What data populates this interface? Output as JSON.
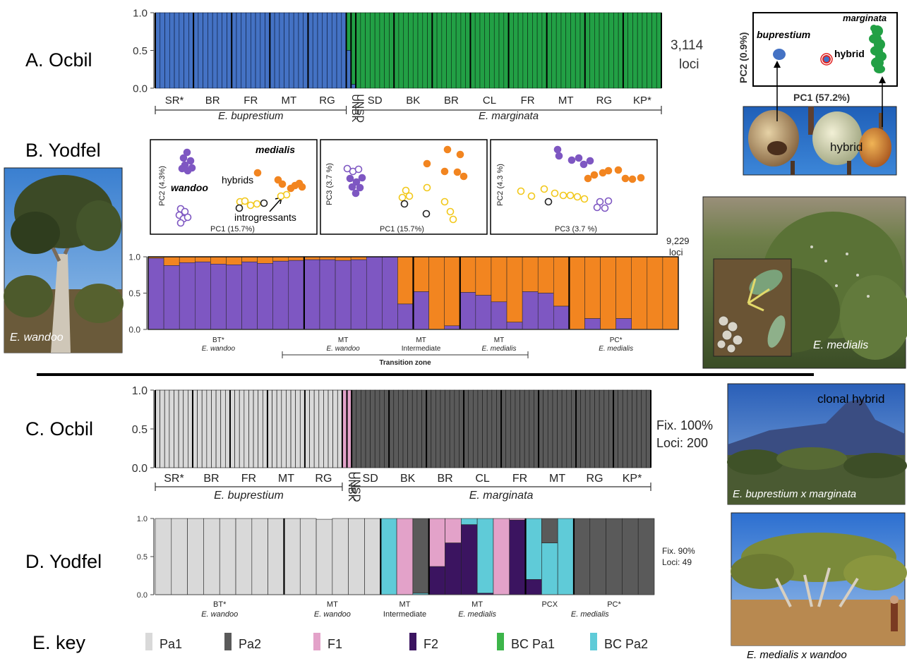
{
  "panels": {
    "A": {
      "label": "A. Ocbil",
      "loci": [
        "3,114",
        "loci"
      ]
    },
    "B": {
      "label": "B. Yodfel",
      "loci": [
        "9,229",
        "loci"
      ]
    },
    "C": {
      "label": "C. Ocbil",
      "loci": [
        "Fix. 100%",
        "Loci: 200"
      ]
    },
    "D": {
      "label": "D. Yodfel",
      "loci": [
        "Fix. 90%",
        "Loci: 49"
      ]
    },
    "E": {
      "label": "E. key"
    }
  },
  "colors": {
    "buprestium_blue": "#4472C4",
    "marginata_green": "#22A045",
    "wandoo_purple": "#7E57C2",
    "medialis_orange": "#F28520",
    "hybrid_yellow": "#F2C81A",
    "Pa1": "#D9D9D9",
    "Pa2": "#5A5A5A",
    "F1": "#E3A2C9",
    "F2": "#3B1460",
    "BC_Pa1": "#3DB54A",
    "BC_Pa2": "#5FCBD8"
  },
  "chart_data": [
    {
      "id": "A-structure",
      "type": "bar",
      "stacked": true,
      "ylim": [
        0,
        1
      ],
      "yticks": [
        "0.0",
        "0.5",
        "1.0"
      ],
      "groups": [
        {
          "label": "SR*",
          "n": 8
        },
        {
          "label": "BR",
          "n": 8
        },
        {
          "label": "FR",
          "n": 8
        },
        {
          "label": "MT",
          "n": 8
        },
        {
          "label": "RG",
          "n": 8
        },
        {
          "label": "UNBK",
          "n": 1
        },
        {
          "label": "UNSD",
          "n": 1
        },
        {
          "label": "SD",
          "n": 8
        },
        {
          "label": "BK",
          "n": 8
        },
        {
          "label": "BR",
          "n": 8
        },
        {
          "label": "CL",
          "n": 8
        },
        {
          "label": "FR",
          "n": 8
        },
        {
          "label": "MT",
          "n": 8
        },
        {
          "label": "RG",
          "n": 8
        },
        {
          "label": "KP*",
          "n": 8
        }
      ],
      "special": [
        {
          "group": 5,
          "blue": 0.5
        },
        {
          "group": 6,
          "blue": 0.05
        }
      ],
      "species": [
        {
          "label": "E. buprestium",
          "from": 0,
          "to": 4
        },
        {
          "label": "E. marginata",
          "from": 7,
          "to": 14
        }
      ]
    },
    {
      "id": "A-pca",
      "type": "scatter",
      "xlabel": "PC1 (57.2%)",
      "ylabel": "PC2 (0.9%)",
      "labels": {
        "buprestium": "buprestium",
        "hybrid": "hybrid",
        "marginata": "marginata"
      }
    },
    {
      "id": "B-pca",
      "type": "scatter",
      "subplots": [
        {
          "xlabel": "PC1 (15.7%)",
          "ylabel": "PC2 (4.3%)"
        },
        {
          "xlabel": "PC1 (15.7%)",
          "ylabel": "PC3 (3.7 %)"
        },
        {
          "xlabel": "PC3 (3.7 %)",
          "ylabel": "PC2 (4.3 %)"
        }
      ],
      "annotations": [
        "medialis",
        "wandoo",
        "hybrids",
        "introgressants"
      ]
    },
    {
      "id": "B-structure",
      "type": "bar",
      "stacked": true,
      "ylim": [
        0,
        1
      ],
      "yticks": [
        "0.0",
        "0.5",
        "1.0"
      ],
      "series_names": [
        "wandoo",
        "medialis"
      ],
      "purple_values": [
        0.98,
        0.88,
        0.92,
        0.93,
        0.9,
        0.89,
        0.93,
        0.91,
        0.94,
        0.95,
        0.96,
        0.96,
        0.95,
        0.96,
        1.0,
        1.0,
        0.35,
        0.52,
        0.0,
        0.05,
        0.51,
        0.47,
        0.38,
        0.1,
        0.52,
        0.5,
        0.32,
        0.0,
        0.15,
        0.0,
        0.15,
        0.0,
        0.0,
        0.0
      ],
      "separators_after": [
        9,
        16,
        19,
        26
      ],
      "group_labels": [
        {
          "label": "BT*",
          "sub": "E. wandoo",
          "from": 0,
          "to": 8
        },
        {
          "label": "MT",
          "sub": "E. wandoo",
          "from": 9,
          "to": 15
        },
        {
          "label": "MT",
          "sub": "Intermediate",
          "from": 16,
          "to": 18
        },
        {
          "label": "MT",
          "sub": "E. medialis",
          "from": 19,
          "to": 25
        },
        {
          "label": "PC*",
          "sub": "E. medialis",
          "from": 26,
          "to": 33
        }
      ],
      "transition_zone": "Transition zone"
    },
    {
      "id": "C-newhybrids",
      "type": "bar",
      "stacked": true,
      "ylim": [
        0,
        1
      ],
      "yticks": [
        "0.0",
        "0.5",
        "1.0"
      ],
      "groups": [
        {
          "label": "SR*",
          "n": 8
        },
        {
          "label": "BR",
          "n": 8
        },
        {
          "label": "FR",
          "n": 8
        },
        {
          "label": "MT",
          "n": 8
        },
        {
          "label": "RG",
          "n": 8
        },
        {
          "label": "UNBK",
          "n": 1
        },
        {
          "label": "UNSD",
          "n": 1
        },
        {
          "label": "SD",
          "n": 8
        },
        {
          "label": "BK",
          "n": 8
        },
        {
          "label": "BR",
          "n": 8
        },
        {
          "label": "CL",
          "n": 8
        },
        {
          "label": "FR",
          "n": 8
        },
        {
          "label": "MT",
          "n": 8
        },
        {
          "label": "RG",
          "n": 8
        },
        {
          "label": "KP*",
          "n": 8
        }
      ],
      "class_of_groups": [
        "Pa1",
        "Pa1",
        "Pa1",
        "Pa1",
        "Pa1",
        "F1",
        "F1",
        "Pa2",
        "Pa2",
        "Pa2",
        "Pa2",
        "Pa2",
        "Pa2",
        "Pa2",
        "Pa2"
      ],
      "species": [
        {
          "label": "E. buprestium",
          "from": 0,
          "to": 4
        },
        {
          "label": "E. marginata",
          "from": 7,
          "to": 14
        }
      ]
    },
    {
      "id": "D-newhybrids",
      "type": "bar",
      "stacked": true,
      "ylim": [
        0,
        1
      ],
      "yticks": [
        "0.0",
        "0.5",
        "1.0"
      ],
      "bars": [
        {
          "Pa1": 1
        },
        {
          "Pa1": 1
        },
        {
          "Pa1": 1
        },
        {
          "Pa1": 1
        },
        {
          "Pa1": 1
        },
        {
          "Pa1": 1
        },
        {
          "Pa1": 1
        },
        {
          "Pa1": 1
        },
        {
          "Pa1": 1
        },
        {
          "Pa1": 1
        },
        {
          "Pa1": 0.99
        },
        {
          "Pa1": 1
        },
        {
          "Pa1": 1
        },
        {
          "Pa1": 1
        },
        {
          "BC_Pa2": 1
        },
        {
          "F1": 1
        },
        {
          "Pa2": 0.98,
          "BC_Pa2": 0.02
        },
        {
          "F1": 0.63,
          "F2": 0.37
        },
        {
          "F1": 0.32,
          "F2": 0.68
        },
        {
          "F2": 0.92,
          "BC_Pa2": 0.08
        },
        {
          "BC_Pa2": 0.98,
          "F2": 0.02
        },
        {
          "F1": 1
        },
        {
          "F2": 0.98,
          "F1": 0.02
        },
        {
          "F2": 0.2,
          "BC_Pa2": 0.8
        },
        {
          "Pa2": 0.32,
          "BC_Pa2": 0.68
        },
        {
          "BC_Pa2": 1
        },
        {
          "Pa2": 1
        },
        {
          "Pa2": 1
        },
        {
          "Pa2": 1
        },
        {
          "Pa2": 1
        },
        {
          "Pa2": 1
        }
      ],
      "separators_after": [
        7,
        13,
        16,
        22,
        25
      ],
      "group_labels": [
        {
          "label": "BT*",
          "sub": "E. wandoo",
          "from": 0,
          "to": 7
        },
        {
          "label": "MT",
          "sub": "E. wandoo",
          "from": 8,
          "to": 13
        },
        {
          "label": "MT",
          "sub": "Intermediate",
          "from": 14,
          "to": 16
        },
        {
          "label": "MT",
          "sub": "E. medialis",
          "from": 17,
          "to": 22
        },
        {
          "label": "PCX",
          "sub": "",
          "from": 23,
          "to": 25
        },
        {
          "label": "PC*",
          "sub": "",
          "from": 26,
          "to": 30
        },
        {
          "label": "",
          "sub": "E. medialis",
          "from": 23,
          "to": 30
        }
      ]
    }
  ],
  "key": [
    {
      "label": "Pa1",
      "color": "#D9D9D9"
    },
    {
      "label": "Pa2",
      "color": "#5A5A5A"
    },
    {
      "label": "F1",
      "color": "#E3A2C9"
    },
    {
      "label": "F2",
      "color": "#3B1460"
    },
    {
      "label": "BC Pa1",
      "color": "#3DB54A"
    },
    {
      "label": "BC Pa2",
      "color": "#5FCBD8"
    }
  ],
  "photos": {
    "fruits": {
      "label": "hybrid"
    },
    "wandoo": {
      "label": "E. wandoo"
    },
    "medialis": {
      "label": "E. medialis"
    },
    "clonal": {
      "title": "clonal hybrid",
      "label": "E. buprestium x marginata"
    },
    "medxwan": {
      "label": "E. medialis x wandoo"
    }
  }
}
